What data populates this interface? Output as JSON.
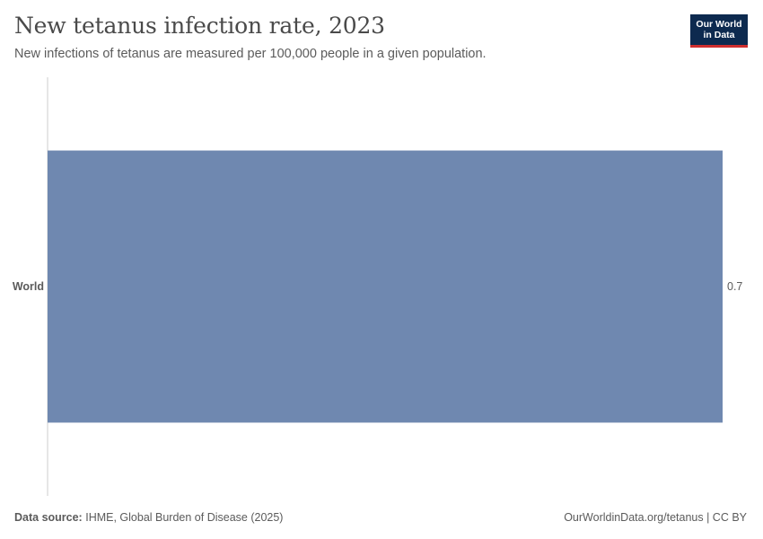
{
  "header": {
    "title": "New tetanus infection rate, 2023",
    "subtitle": "New infections of tetanus are measured per 100,000 people in a given population."
  },
  "logo": {
    "line1": "Our World",
    "line2": "in Data"
  },
  "footer": {
    "source_label": "Data source:",
    "source_text": "IHME, Global Burden of Disease (2025)",
    "url_text": "OurWorldinData.org/tetanus | CC BY"
  },
  "colors": {
    "bar": "#6f88b0",
    "axis": "#cccccc",
    "logo_bg": "#0d2a4f",
    "logo_accent": "#cf2e2e"
  },
  "chart_data": {
    "type": "bar",
    "orientation": "horizontal",
    "title": "New tetanus infection rate, 2023",
    "subtitle": "New infections of tetanus are measured per 100,000 people in a given population.",
    "categories": [
      "World"
    ],
    "values": [
      0.7
    ],
    "value_labels": [
      "0.7"
    ],
    "xlim": [
      0,
      0.7
    ],
    "grid": false,
    "legend": "none"
  }
}
